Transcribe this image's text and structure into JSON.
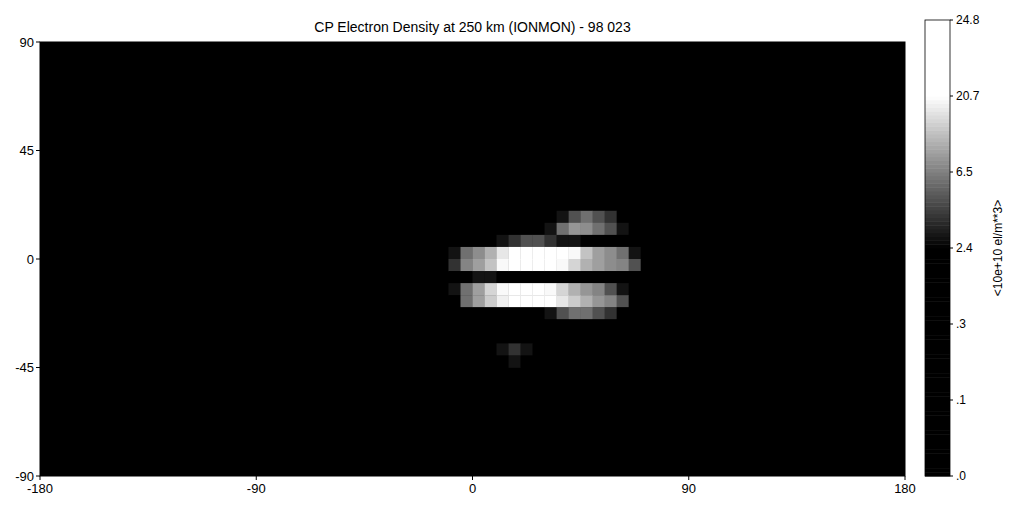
{
  "chart_data": {
    "type": "heatmap",
    "title": "CP Electron Density at 250 km (IONMON) - 98 023",
    "x": [
      -7.5,
      -2.5,
      2.5,
      7.5,
      12.5,
      17.5,
      22.5,
      27.5,
      32.5,
      37.5,
      42.5,
      47.5,
      52.5,
      57.5,
      62.5,
      67.5,
      72.5,
      77.5
    ],
    "y": [
      17.5,
      12.5,
      7.5,
      2.5,
      -2.5,
      -7.5,
      -12.5,
      -17.5,
      -22.5,
      -27.5,
      -32.5,
      -37.5,
      -42.5
    ],
    "values": [
      [
        0,
        0,
        0,
        0,
        0,
        0,
        0,
        0,
        0,
        3,
        5,
        6,
        5,
        4,
        0,
        0,
        0,
        0
      ],
      [
        0,
        0,
        0,
        0,
        0,
        0,
        0,
        0,
        3,
        6,
        9,
        8,
        6,
        5,
        3,
        0,
        0,
        0
      ],
      [
        0,
        1,
        1,
        1,
        3,
        4,
        5,
        5,
        4,
        3,
        3,
        1,
        1,
        1,
        1,
        0,
        0,
        0
      ],
      [
        3,
        6,
        8,
        12,
        18,
        22,
        24,
        24,
        23,
        22,
        20,
        14,
        10,
        8,
        6,
        3,
        0,
        0
      ],
      [
        4,
        7,
        10,
        14,
        20,
        23,
        24,
        23,
        22,
        20,
        16,
        12,
        10,
        8,
        7,
        5,
        2,
        0
      ],
      [
        0,
        2,
        3,
        3,
        2,
        2,
        2,
        2,
        2,
        2,
        2,
        2,
        2,
        2,
        1,
        0,
        0,
        0
      ],
      [
        3,
        6,
        10,
        16,
        20,
        22,
        23,
        22,
        20,
        16,
        12,
        9,
        7,
        5,
        3,
        0,
        0,
        0
      ],
      [
        0,
        6,
        10,
        15,
        19,
        21,
        22,
        22,
        21,
        18,
        15,
        12,
        9,
        7,
        5,
        0,
        0,
        0
      ],
      [
        0,
        0,
        0,
        0,
        0,
        0,
        0,
        0,
        3,
        5,
        6,
        6,
        5,
        4,
        0,
        0,
        0,
        0
      ],
      [
        0,
        0,
        0,
        0,
        0,
        0,
        0,
        0,
        0,
        0,
        0,
        0,
        0,
        0,
        0,
        0,
        0,
        0
      ],
      [
        0,
        0,
        0,
        0,
        0,
        0,
        0,
        0,
        0,
        0,
        0,
        0,
        0,
        0,
        0,
        0,
        0,
        0
      ],
      [
        0,
        0,
        0,
        0,
        3,
        4,
        3,
        0,
        0,
        0,
        0,
        0,
        0,
        0,
        0,
        0,
        0,
        0
      ],
      [
        0,
        0,
        0,
        0,
        2,
        3,
        0,
        0,
        0,
        0,
        0,
        0,
        0,
        0,
        0,
        0,
        0,
        0
      ]
    ],
    "xlim": [
      -180,
      180
    ],
    "ylim": [
      -90,
      90
    ],
    "xticks": [
      -180,
      -90,
      0,
      90,
      180
    ],
    "yticks": [
      -90,
      -45,
      0,
      45,
      90
    ],
    "grid": false,
    "colorbar": {
      "label": "<10e+10 el/m**3>",
      "range": [
        0,
        24.8
      ],
      "ticks": [
        {
          "value": 0,
          "label": ".0"
        },
        {
          "value": 0.1,
          "label": ".1"
        },
        {
          "value": 0.3,
          "label": ".3"
        },
        2.4,
        6.5,
        20.7,
        24.8
      ]
    }
  }
}
